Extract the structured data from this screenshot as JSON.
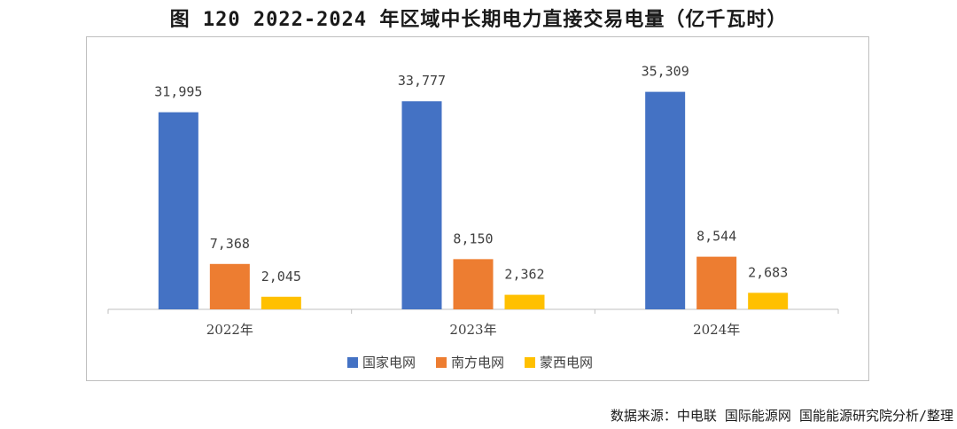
{
  "figure": {
    "title": "图 120 2022-2024 年区域中长期电力直接交易电量（亿千瓦时）",
    "source": "数据来源：中电联 国际能源网 国能能源研究院分析/整理"
  },
  "chart_data": {
    "type": "bar",
    "title": "图 120 2022-2024 年区域中长期电力直接交易电量（亿千瓦时）",
    "categories": [
      "2022年",
      "2023年",
      "2024年"
    ],
    "series": [
      {
        "name": "国家电网",
        "color": "#4472c4",
        "values": [
          31995,
          33777,
          35309
        ],
        "labels": [
          "31,995",
          "33,777",
          "35,309"
        ]
      },
      {
        "name": "南方电网",
        "color": "#ed7d31",
        "values": [
          7368,
          8150,
          8544
        ],
        "labels": [
          "7,368",
          "8,150",
          "8,544"
        ]
      },
      {
        "name": "蒙西电网",
        "color": "#ffc000",
        "values": [
          2045,
          2362,
          2683
        ],
        "labels": [
          "2,045",
          "2,362",
          "2,683"
        ]
      }
    ],
    "ylim": [
      0,
      40000
    ],
    "grid": false,
    "legend": "bottom",
    "xlabel": "",
    "ylabel": ""
  }
}
